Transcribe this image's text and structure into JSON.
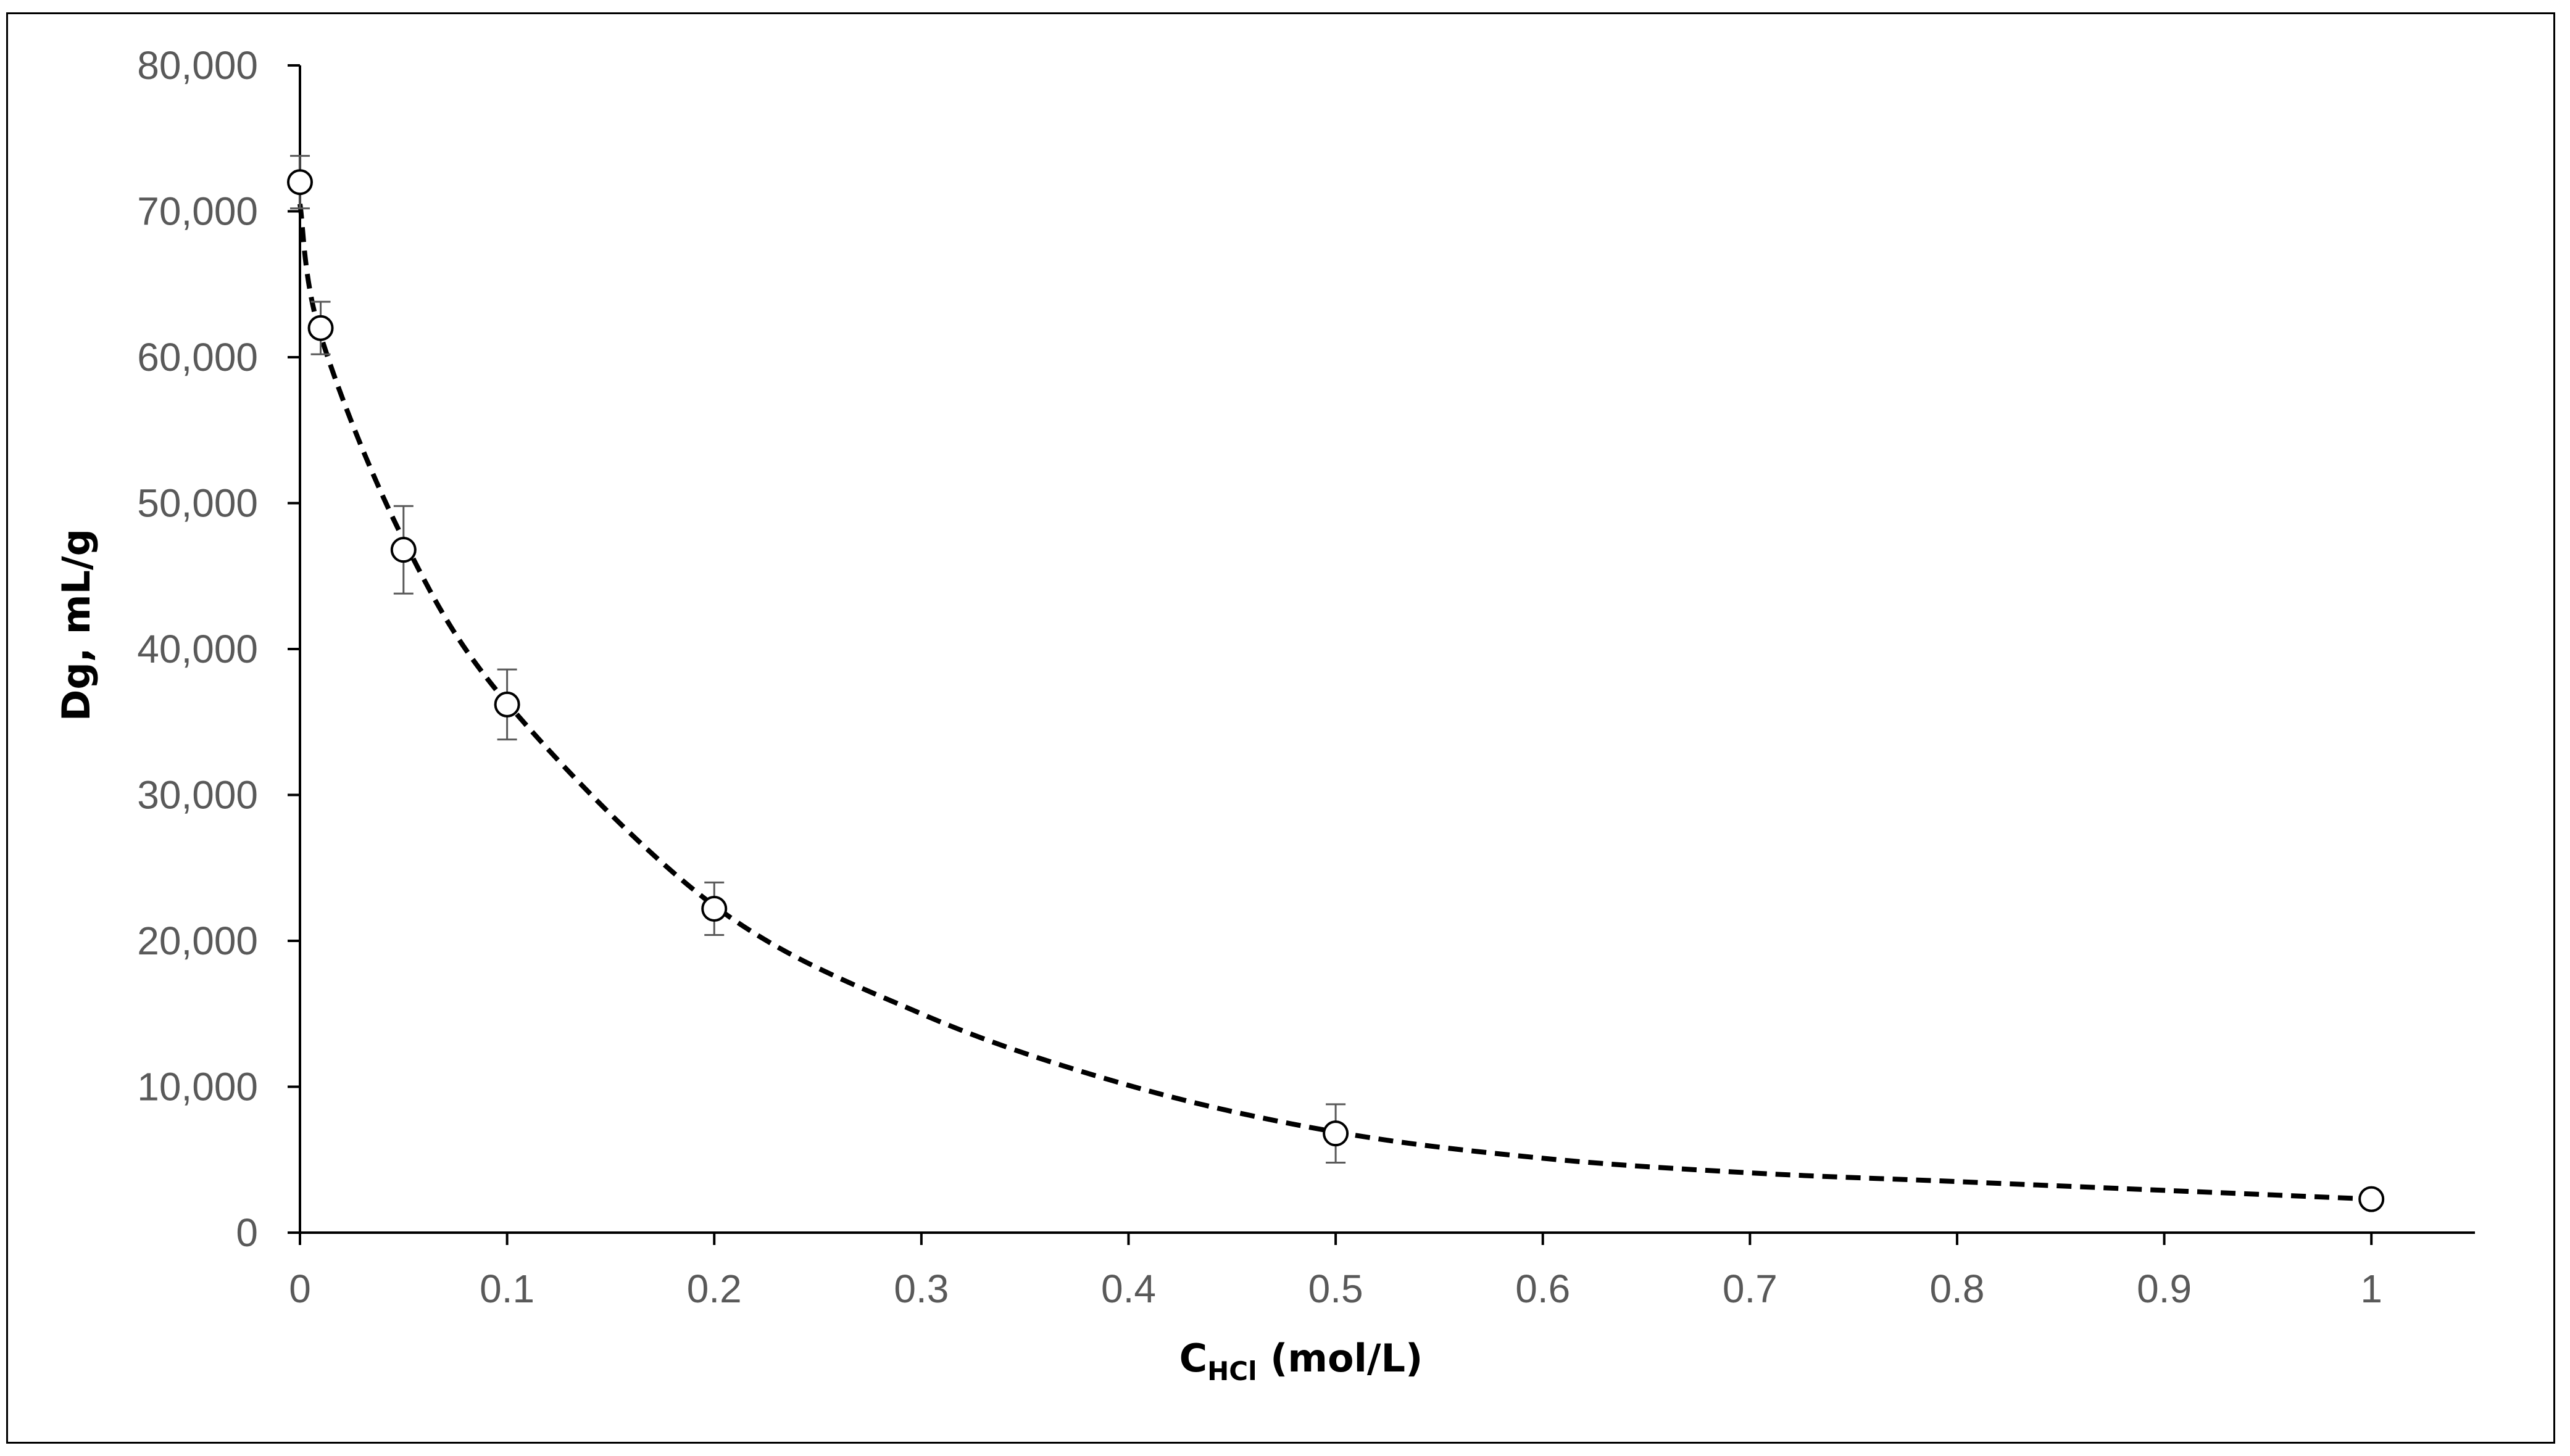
{
  "chart_data": {
    "type": "scatter",
    "title": "",
    "xlabel": {
      "main": "C",
      "sub": "HCl",
      "rest": " (mol/L)"
    },
    "ylabel": "Dg, mL/g",
    "xlim": [
      0,
      1.05
    ],
    "ylim": [
      0,
      80000
    ],
    "x_ticks": [
      0,
      0.1,
      0.2,
      0.3,
      0.4,
      0.5,
      0.6,
      0.7,
      0.8,
      0.9,
      1
    ],
    "x_tick_labels": [
      "0",
      "0.1",
      "0.2",
      "0.3",
      "0.4",
      "0.5",
      "0.6",
      "0.7",
      "0.8",
      "0.9",
      "1"
    ],
    "y_ticks": [
      0,
      10000,
      20000,
      30000,
      40000,
      50000,
      60000,
      70000,
      80000
    ],
    "y_tick_labels": [
      "0",
      "10,000",
      "20,000",
      "30,000",
      "40,000",
      "50,000",
      "60,000",
      "70,000",
      "80,000"
    ],
    "grid": false,
    "series": [
      {
        "name": "Dg",
        "x": [
          0,
          0.01,
          0.05,
          0.1,
          0.2,
          0.5,
          1
        ],
        "y": [
          72000,
          62000,
          46800,
          36200,
          22200,
          6800,
          2300
        ],
        "error": [
          1800,
          1800,
          3000,
          2400,
          1800,
          2000,
          0
        ],
        "marker": "open-circle"
      }
    ],
    "trendline": {
      "style": "dashed",
      "x": [
        0,
        0.01,
        0.05,
        0.1,
        0.2,
        0.3,
        0.4,
        0.5,
        0.6,
        0.7,
        0.8,
        0.9,
        1
      ],
      "y": [
        70500,
        61500,
        47500,
        36300,
        22400,
        15000,
        10100,
        6900,
        5100,
        4100,
        3500,
        2900,
        2300
      ]
    },
    "colors": {
      "axis": "#000000",
      "tick_text": "#595959",
      "errorbar": "#595959",
      "line": "#000000",
      "marker_fill": "#ffffff"
    }
  }
}
